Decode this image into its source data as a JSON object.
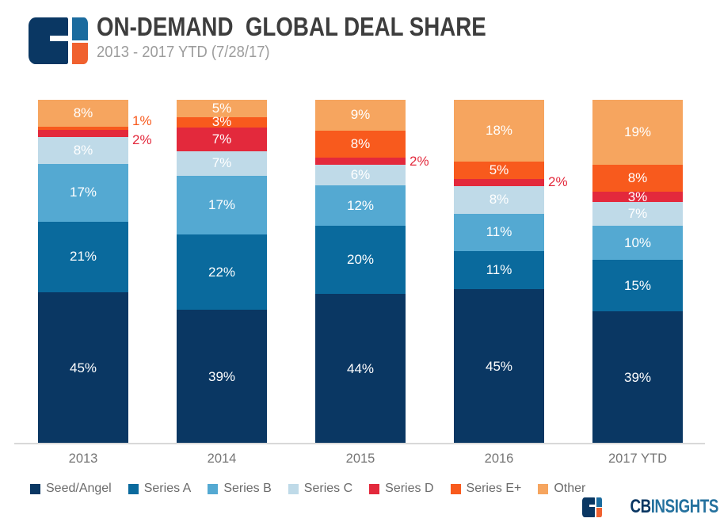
{
  "header": {
    "title": "ON-DEMAND  GLOBAL DEAL SHARE",
    "subtitle": "2013 - 2017 YTD (7/28/17)"
  },
  "brand": {
    "cb": "CB",
    "insights": "INSIGHTS"
  },
  "icons": {
    "top_left_logo": "cbinsights-logo-icon",
    "bottom_right_logo": "cbinsights-logo-icon"
  },
  "colors": {
    "title_text": "#3d3d3d",
    "subtitle_text": "#9c9c9c",
    "axis_label_text": "#757575",
    "legend_text": "#6b6b6b",
    "axis_line": "#d9d9d9",
    "logo_navy": "#0A3763",
    "logo_blue": "#1B6B9E",
    "logo_orange": "#F0612F"
  },
  "chart_data": {
    "type": "bar",
    "stacked": true,
    "normalized_to_100pct": true,
    "unit": "%",
    "title": "ON-DEMAND  GLOBAL DEAL SHARE",
    "subtitle": "2013 - 2017 YTD (7/28/17)",
    "xlabel": "",
    "ylabel": "",
    "ylim": [
      0,
      100
    ],
    "grid": false,
    "legend_position": "bottom",
    "categories": [
      "2013",
      "2014",
      "2015",
      "2016",
      "2017 YTD"
    ],
    "series": [
      {
        "name": "Seed/Angel",
        "color": "#0A3763",
        "values": [
          45,
          39,
          44,
          45,
          39
        ]
      },
      {
        "name": "Series A",
        "color": "#0A6A9D",
        "values": [
          21,
          22,
          20,
          11,
          15
        ]
      },
      {
        "name": "Series B",
        "color": "#54A9D2",
        "values": [
          17,
          17,
          12,
          11,
          10
        ]
      },
      {
        "name": "Series C",
        "color": "#BFDAE8",
        "values": [
          8,
          7,
          6,
          8,
          7
        ]
      },
      {
        "name": "Series D",
        "color": "#E3293C",
        "values": [
          2,
          7,
          2,
          2,
          3
        ]
      },
      {
        "name": "Series E+",
        "color": "#F85A1D",
        "values": [
          1,
          3,
          8,
          5,
          8
        ]
      },
      {
        "name": "Other",
        "color": "#F6A55F",
        "values": [
          8,
          5,
          9,
          18,
          19
        ]
      }
    ],
    "outside_labels": {
      "Series D": [
        "2013",
        "2015",
        "2016"
      ],
      "Series E+": [
        "2013"
      ]
    }
  }
}
